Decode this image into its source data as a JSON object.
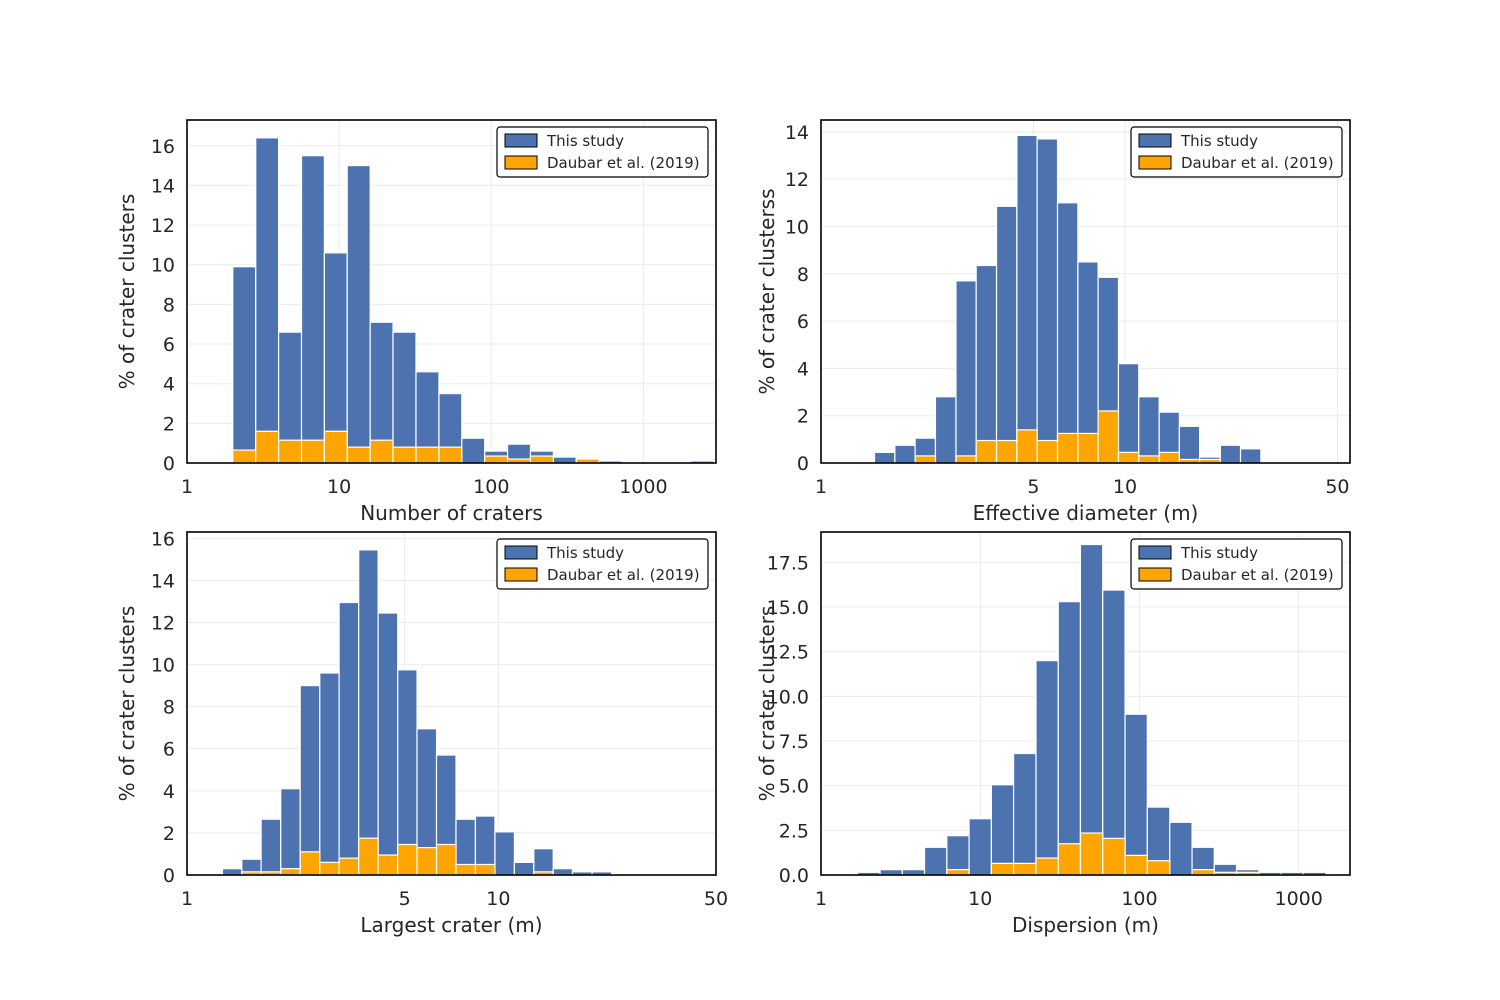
{
  "colors": {
    "this_study": "#4c72b0",
    "daubar": "#ffa500"
  },
  "chart_data": [
    {
      "type": "bar",
      "title": "",
      "xlabel": "Number of craters",
      "ylabel": "% of crater clusters",
      "xscale": "log",
      "xlim": [
        1,
        3000
      ],
      "ylim": [
        0,
        17.3
      ],
      "xticks": [
        1,
        10,
        100,
        1000
      ],
      "xtick_labels": [
        "1",
        "10",
        "100",
        "1000"
      ],
      "yticks": [
        0,
        2,
        4,
        6,
        8,
        10,
        12,
        14,
        16
      ],
      "ytick_labels": [
        "0",
        "2",
        "4",
        "6",
        "8",
        "10",
        "12",
        "14",
        "16"
      ],
      "legend": {
        "position": "top-right",
        "labels": [
          "This study",
          "Daubar et al. (2019)"
        ]
      },
      "bin_edges": [
        2,
        2.83,
        4,
        5.66,
        8,
        11.3,
        16,
        22.6,
        32,
        45.3,
        64,
        90.5,
        128,
        181,
        256,
        362,
        512,
        724,
        1024,
        1448,
        2048,
        2896
      ],
      "series": [
        {
          "name": "This study",
          "values": [
            9.9,
            16.4,
            6.6,
            15.5,
            10.6,
            15.0,
            7.1,
            6.6,
            4.6,
            3.5,
            1.25,
            0.6,
            0.95,
            0.6,
            0.3,
            0.15,
            0.1,
            0.0,
            0.0,
            0.0,
            0.1
          ]
        },
        {
          "name": "Daubar et al. (2019)",
          "values": [
            0.65,
            1.6,
            1.15,
            1.15,
            1.6,
            0.8,
            1.15,
            0.8,
            0.8,
            0.8,
            0.0,
            0.35,
            0.2,
            0.35,
            0.0,
            0.2,
            0.0,
            0.0,
            0.0,
            0.0,
            0.0
          ]
        }
      ]
    },
    {
      "type": "bar",
      "title": "",
      "xlabel": "Effective diameter (m)",
      "ylabel": "% of crater clusterss",
      "xscale": "log",
      "xlim": [
        1,
        55
      ],
      "ylim": [
        0,
        14.5
      ],
      "xticks": [
        1,
        5,
        10,
        50
      ],
      "xtick_labels": [
        "1",
        "5",
        "10",
        "50"
      ],
      "yticks": [
        0,
        2,
        4,
        6,
        8,
        10,
        12,
        14
      ],
      "ytick_labels": [
        "0",
        "2",
        "4",
        "6",
        "8",
        "10",
        "12",
        "14"
      ],
      "legend": {
        "position": "top-right",
        "labels": [
          "This study",
          "Daubar et al. (2019)"
        ]
      },
      "bin_edges": [
        1.5,
        1.75,
        2.04,
        2.38,
        2.78,
        3.24,
        3.78,
        4.41,
        5.14,
        6.0,
        7.0,
        8.16,
        9.52,
        11.1,
        12.96,
        15.1,
        17.6,
        20.6,
        24.0,
        28.0,
        32.7,
        38.1,
        44.4
      ],
      "series": [
        {
          "name": "This study",
          "values": [
            0.45,
            0.75,
            1.05,
            2.8,
            7.7,
            8.35,
            10.85,
            13.85,
            13.7,
            11.0,
            8.5,
            7.85,
            4.2,
            2.8,
            2.15,
            1.55,
            0.25,
            0.75,
            0.6,
            0.0,
            0.0,
            0.0
          ]
        },
        {
          "name": "Daubar et al. (2019)",
          "values": [
            0.0,
            0.0,
            0.3,
            0.0,
            0.3,
            0.95,
            0.95,
            1.4,
            0.95,
            1.25,
            1.25,
            2.2,
            0.45,
            0.3,
            0.45,
            0.15,
            0.15,
            0.0,
            0.0,
            0.0,
            0.0,
            0.0
          ]
        }
      ]
    },
    {
      "type": "bar",
      "title": "",
      "xlabel": "Largest crater (m)",
      "ylabel": "% of crater clusters",
      "xscale": "log",
      "xlim": [
        1,
        50
      ],
      "ylim": [
        0,
        16.3
      ],
      "xticks": [
        1,
        5,
        10,
        50
      ],
      "xtick_labels": [
        "1",
        "5",
        "10",
        "50"
      ],
      "yticks": [
        0,
        2,
        4,
        6,
        8,
        10,
        12,
        14,
        16
      ],
      "ytick_labels": [
        "0",
        "2",
        "4",
        "6",
        "8",
        "10",
        "12",
        "14",
        "16"
      ],
      "legend": {
        "position": "top-right",
        "labels": [
          "This study",
          "Daubar et al. (2019)"
        ]
      },
      "bin_edges": [
        1.3,
        1.5,
        1.73,
        2.0,
        2.31,
        2.67,
        3.08,
        3.56,
        4.11,
        4.75,
        5.48,
        6.33,
        7.31,
        8.44,
        9.75,
        11.26,
        13.0,
        15.0,
        17.3,
        20.0,
        23.1,
        26.7,
        30.8,
        35.6
      ],
      "series": [
        {
          "name": "This study",
          "values": [
            0.3,
            0.75,
            2.65,
            4.1,
            9.0,
            9.6,
            12.95,
            15.45,
            12.45,
            9.75,
            6.95,
            5.7,
            2.65,
            2.8,
            2.05,
            0.6,
            1.25,
            0.3,
            0.15,
            0.15,
            0.0,
            0.0,
            0.0
          ]
        },
        {
          "name": "Daubar et al. (2019)",
          "values": [
            0.0,
            0.15,
            0.15,
            0.3,
            1.1,
            0.6,
            0.8,
            1.75,
            0.95,
            1.45,
            1.3,
            1.45,
            0.5,
            0.5,
            0.0,
            0.0,
            0.15,
            0.0,
            0.0,
            0.0,
            0.0,
            0.0,
            0.0
          ]
        }
      ]
    },
    {
      "type": "bar",
      "title": "",
      "xlabel": "Dispersion (m)",
      "ylabel": "% of crater clusters",
      "xscale": "log",
      "xlim": [
        1,
        2100
      ],
      "ylim": [
        0,
        19.2
      ],
      "xticks": [
        1,
        10,
        100,
        1000
      ],
      "xtick_labels": [
        "1",
        "10",
        "100",
        "1000"
      ],
      "yticks": [
        0,
        2.5,
        5,
        7.5,
        10,
        12.5,
        15,
        17.5
      ],
      "ytick_labels": [
        "0.0",
        "2.5",
        "5.0",
        "7.5",
        "10.0",
        "12.5",
        "15.0",
        "17.5"
      ],
      "legend": {
        "position": "top-right",
        "labels": [
          "This study",
          "Daubar et al. (2019)"
        ]
      },
      "bin_edges": [
        1.7,
        2.35,
        3.24,
        4.47,
        6.17,
        8.51,
        11.75,
        16.2,
        22.4,
        30.9,
        42.6,
        58.8,
        81.2,
        112,
        155,
        214,
        295,
        407,
        562,
        776,
        1071,
        1479,
        2040
      ],
      "series": [
        {
          "name": "This study",
          "values": [
            0.15,
            0.3,
            0.3,
            1.55,
            2.2,
            3.15,
            5.05,
            6.8,
            12.0,
            15.3,
            18.5,
            15.95,
            9.0,
            3.8,
            2.95,
            1.55,
            0.6,
            0.3,
            0.15,
            0.15,
            0.15,
            0.0
          ]
        },
        {
          "name": "Daubar et al. (2019)",
          "values": [
            0.0,
            0.0,
            0.0,
            0.0,
            0.3,
            0.0,
            0.65,
            0.65,
            0.95,
            1.75,
            2.35,
            2.05,
            1.1,
            0.8,
            0.0,
            0.3,
            0.15,
            0.15,
            0.0,
            0.0,
            0.0,
            0.0
          ]
        }
      ]
    }
  ]
}
